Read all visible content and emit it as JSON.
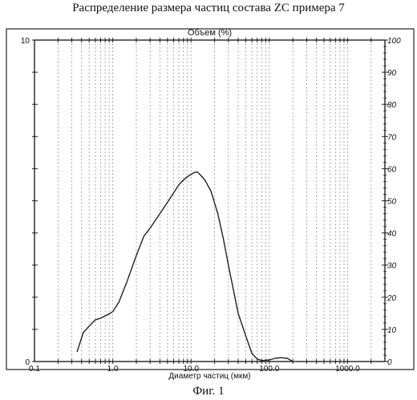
{
  "page": {
    "title": "Распределение размера частиц состава ZC примера 7",
    "caption": "Фиг. 1"
  },
  "chart_data": {
    "type": "line",
    "title": "Объем (%)",
    "xlabel": "Диаметр частиц (мкм)",
    "xscale": "log",
    "xlim": [
      0.1,
      3000
    ],
    "x_ticks": [
      0.1,
      1.0,
      10.0,
      100.0,
      1000.0
    ],
    "x_tick_labels": [
      "0.1",
      "1.0",
      "10.0",
      "100.0",
      "1000.0"
    ],
    "ylim": [
      0,
      10
    ],
    "y_left_ticks": [
      0,
      10
    ],
    "y_left_tick_labels": [
      "0",
      "10"
    ],
    "y_right_ticks": [
      0,
      10,
      20,
      30,
      40,
      50,
      60,
      70,
      80,
      90,
      100
    ],
    "y_right_tick_labels": [
      "0",
      "10",
      "20",
      "30",
      "40",
      "50",
      "60",
      "70",
      "80",
      "90",
      "100"
    ],
    "grid": "vertical-dotted",
    "series": [
      {
        "color": "#222222",
        "points": [
          [
            0.35,
            0.3
          ],
          [
            0.42,
            0.9
          ],
          [
            0.5,
            1.1
          ],
          [
            0.6,
            1.3
          ],
          [
            0.7,
            1.35
          ],
          [
            0.85,
            1.45
          ],
          [
            1.0,
            1.55
          ],
          [
            1.2,
            1.85
          ],
          [
            1.5,
            2.45
          ],
          [
            2.0,
            3.3
          ],
          [
            2.5,
            3.9
          ],
          [
            3.0,
            4.15
          ],
          [
            4.0,
            4.6
          ],
          [
            5.0,
            4.95
          ],
          [
            6.0,
            5.25
          ],
          [
            7.0,
            5.5
          ],
          [
            8.0,
            5.65
          ],
          [
            9.0,
            5.75
          ],
          [
            10.0,
            5.82
          ],
          [
            11.0,
            5.88
          ],
          [
            12.0,
            5.9
          ],
          [
            13.0,
            5.82
          ],
          [
            15.0,
            5.65
          ],
          [
            18.0,
            5.3
          ],
          [
            22.0,
            4.6
          ],
          [
            26.0,
            3.8
          ],
          [
            30.0,
            3.0
          ],
          [
            35.0,
            2.2
          ],
          [
            40.0,
            1.5
          ],
          [
            50.0,
            0.8
          ],
          [
            60.0,
            0.25
          ],
          [
            70.0,
            0.08
          ],
          [
            80.0,
            0.03
          ],
          [
            100.0,
            0.05
          ],
          [
            120.0,
            0.1
          ],
          [
            140.0,
            0.12
          ],
          [
            170.0,
            0.1
          ],
          [
            200.0,
            0.0
          ]
        ]
      }
    ]
  }
}
